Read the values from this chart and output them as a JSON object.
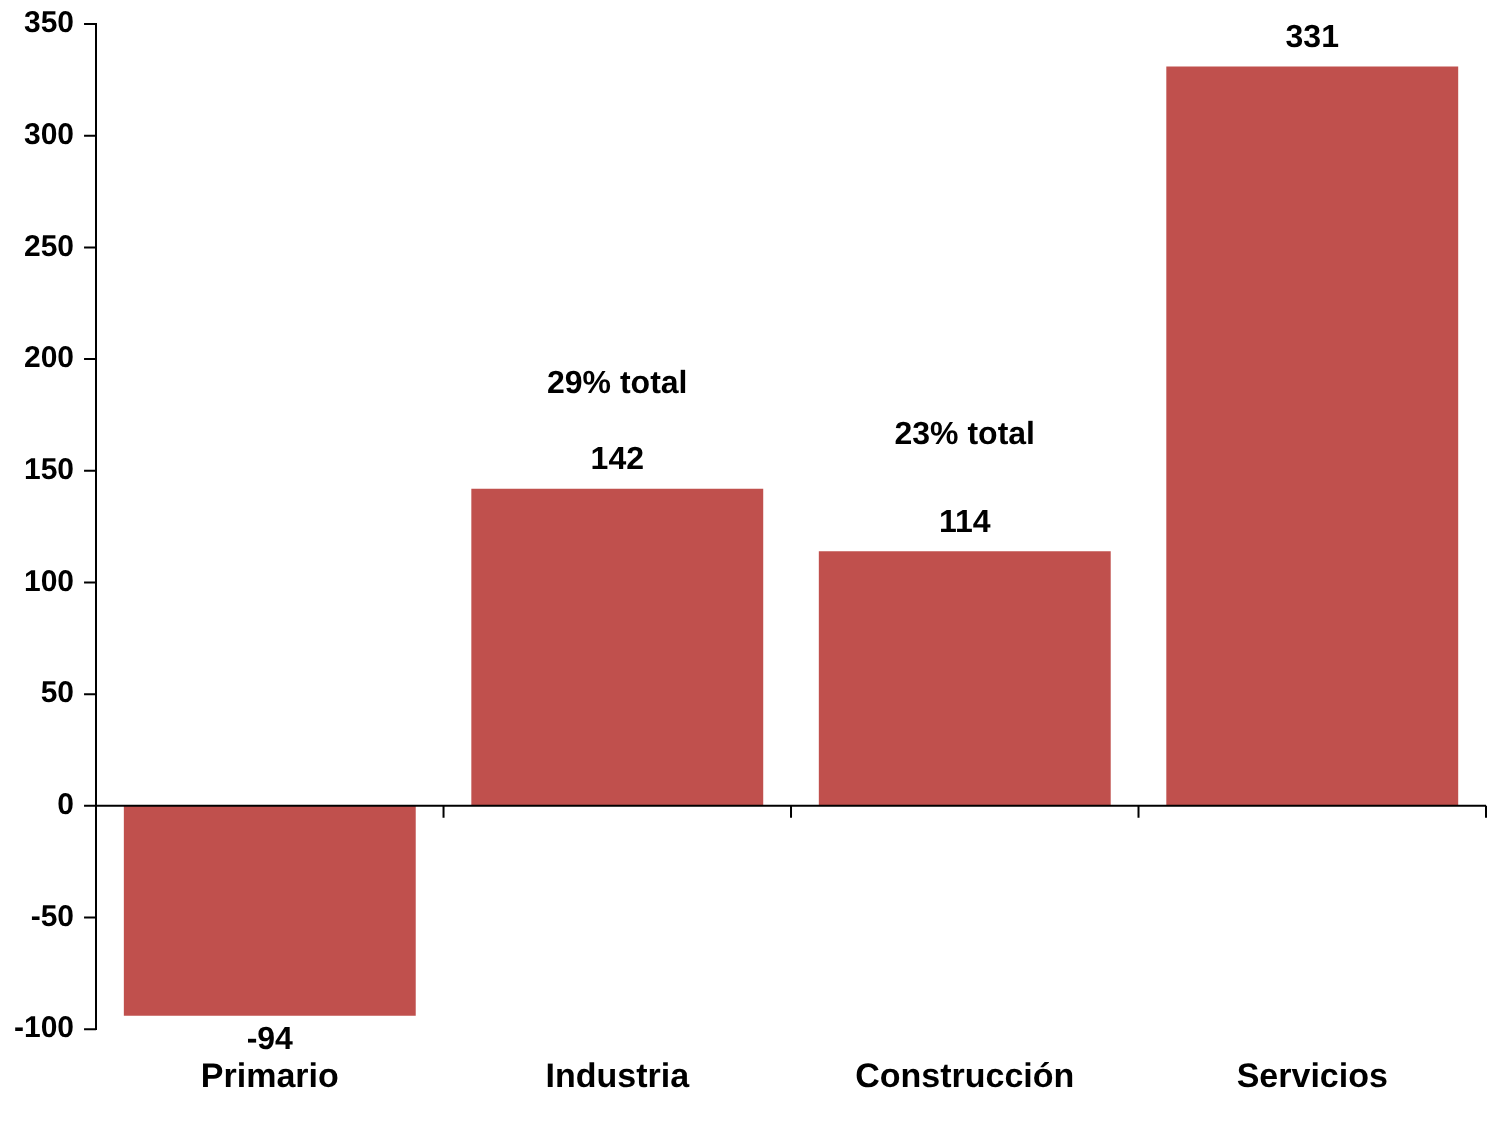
{
  "chart_data": {
    "type": "bar",
    "categories": [
      "Primario",
      "Industria",
      "Construcción",
      "Servicios"
    ],
    "values": [
      -94,
      142,
      114,
      331
    ],
    "color": "#c0504d",
    "ylim": [
      -100,
      350
    ],
    "yticks": [
      -100,
      -50,
      0,
      50,
      100,
      150,
      200,
      250,
      300,
      350
    ],
    "legend": false,
    "data_labels": true,
    "annotations": [
      "29% total",
      "23% total"
    ]
  }
}
